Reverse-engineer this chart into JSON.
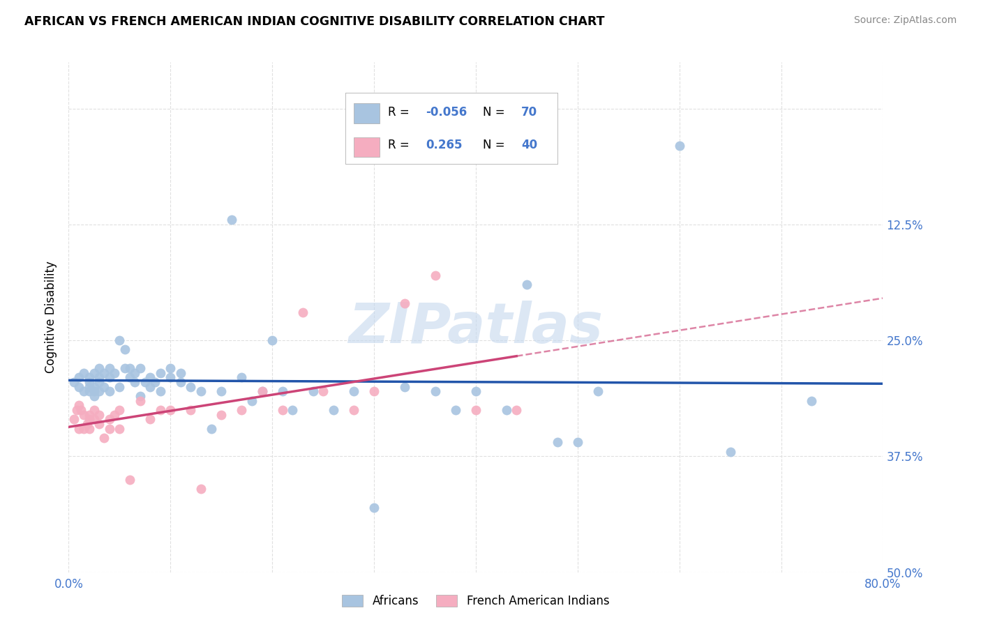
{
  "title": "AFRICAN VS FRENCH AMERICAN INDIAN COGNITIVE DISABILITY CORRELATION CHART",
  "source": "Source: ZipAtlas.com",
  "ylabel": "Cognitive Disability",
  "xlim": [
    0.0,
    0.8
  ],
  "ylim": [
    0.0,
    0.55
  ],
  "blue_color": "#a8c4e0",
  "pink_color": "#f5adc0",
  "blue_line_color": "#2255aa",
  "pink_line_color": "#cc4477",
  "tick_label_color": "#4477cc",
  "watermark": "ZIPatlas",
  "legend_r1": "-0.056",
  "legend_n1": "70",
  "legend_r2": "0.265",
  "legend_n2": "40",
  "africans_x": [
    0.005,
    0.01,
    0.01,
    0.015,
    0.015,
    0.02,
    0.02,
    0.02,
    0.02,
    0.025,
    0.025,
    0.025,
    0.025,
    0.03,
    0.03,
    0.03,
    0.03,
    0.035,
    0.035,
    0.04,
    0.04,
    0.04,
    0.045,
    0.05,
    0.05,
    0.055,
    0.055,
    0.06,
    0.06,
    0.065,
    0.065,
    0.07,
    0.07,
    0.075,
    0.08,
    0.08,
    0.085,
    0.09,
    0.09,
    0.1,
    0.1,
    0.11,
    0.11,
    0.12,
    0.13,
    0.14,
    0.15,
    0.16,
    0.17,
    0.18,
    0.19,
    0.2,
    0.21,
    0.22,
    0.24,
    0.26,
    0.28,
    0.3,
    0.33,
    0.36,
    0.38,
    0.4,
    0.43,
    0.45,
    0.48,
    0.5,
    0.52,
    0.6,
    0.65,
    0.73
  ],
  "africans_y": [
    0.205,
    0.2,
    0.21,
    0.215,
    0.195,
    0.2,
    0.195,
    0.205,
    0.21,
    0.2,
    0.195,
    0.215,
    0.19,
    0.21,
    0.195,
    0.22,
    0.205,
    0.2,
    0.215,
    0.21,
    0.195,
    0.22,
    0.215,
    0.2,
    0.25,
    0.22,
    0.24,
    0.21,
    0.22,
    0.205,
    0.215,
    0.22,
    0.19,
    0.205,
    0.2,
    0.21,
    0.205,
    0.215,
    0.195,
    0.21,
    0.22,
    0.205,
    0.215,
    0.2,
    0.195,
    0.155,
    0.195,
    0.38,
    0.21,
    0.185,
    0.195,
    0.25,
    0.195,
    0.175,
    0.195,
    0.175,
    0.195,
    0.07,
    0.2,
    0.195,
    0.175,
    0.195,
    0.175,
    0.31,
    0.14,
    0.14,
    0.195,
    0.46,
    0.13,
    0.185
  ],
  "french_x": [
    0.005,
    0.008,
    0.01,
    0.01,
    0.012,
    0.015,
    0.015,
    0.018,
    0.02,
    0.02,
    0.02,
    0.025,
    0.025,
    0.03,
    0.03,
    0.035,
    0.04,
    0.04,
    0.045,
    0.05,
    0.05,
    0.06,
    0.07,
    0.08,
    0.09,
    0.1,
    0.12,
    0.13,
    0.15,
    0.17,
    0.19,
    0.21,
    0.23,
    0.25,
    0.28,
    0.3,
    0.33,
    0.36,
    0.4,
    0.44
  ],
  "french_y": [
    0.165,
    0.175,
    0.18,
    0.155,
    0.175,
    0.17,
    0.155,
    0.16,
    0.165,
    0.17,
    0.155,
    0.175,
    0.165,
    0.17,
    0.16,
    0.145,
    0.165,
    0.155,
    0.17,
    0.155,
    0.175,
    0.1,
    0.185,
    0.165,
    0.175,
    0.175,
    0.175,
    0.09,
    0.17,
    0.175,
    0.195,
    0.175,
    0.28,
    0.195,
    0.175,
    0.195,
    0.29,
    0.32,
    0.175,
    0.175
  ]
}
